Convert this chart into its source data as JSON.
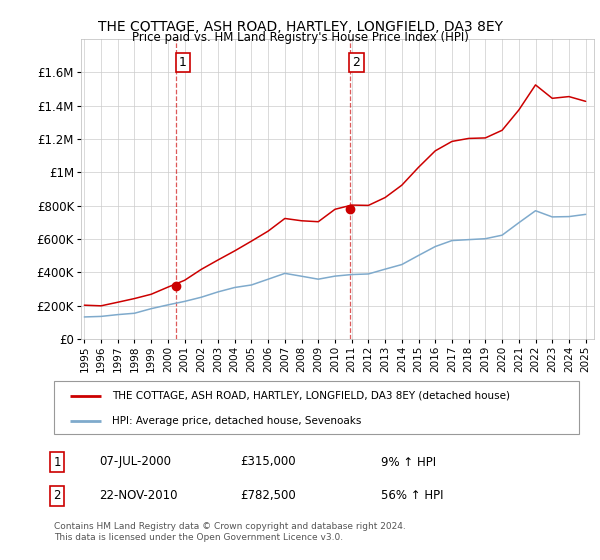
{
  "title": "THE COTTAGE, ASH ROAD, HARTLEY, LONGFIELD, DA3 8EY",
  "subtitle": "Price paid vs. HM Land Registry's House Price Index (HPI)",
  "legend_line1": "THE COTTAGE, ASH ROAD, HARTLEY, LONGFIELD, DA3 8EY (detached house)",
  "legend_line2": "HPI: Average price, detached house, Sevenoaks",
  "sale1_date": "07-JUL-2000",
  "sale1_price": "£315,000",
  "sale1_hpi": "9% ↑ HPI",
  "sale2_date": "22-NOV-2010",
  "sale2_price": "£782,500",
  "sale2_hpi": "56% ↑ HPI",
  "footnote1": "Contains HM Land Registry data © Crown copyright and database right 2024.",
  "footnote2": "This data is licensed under the Open Government Licence v3.0.",
  "red_color": "#cc0000",
  "blue_color": "#7faacc",
  "sale1_x": 2000.5,
  "sale1_y": 315000,
  "sale2_x": 2010.9,
  "sale2_y": 782500,
  "ylim": [
    0,
    1800000
  ],
  "xlim": [
    1994.8,
    2025.5
  ],
  "yticks": [
    0,
    200000,
    400000,
    600000,
    800000,
    1000000,
    1200000,
    1400000,
    1600000
  ],
  "ytick_labels": [
    "£0",
    "£200K",
    "£400K",
    "£600K",
    "£800K",
    "£1M",
    "£1.2M",
    "£1.4M",
    "£1.6M"
  ],
  "xticks": [
    1995,
    1996,
    1997,
    1998,
    1999,
    2000,
    2001,
    2002,
    2003,
    2004,
    2005,
    2006,
    2007,
    2008,
    2009,
    2010,
    2011,
    2012,
    2013,
    2014,
    2015,
    2016,
    2017,
    2018,
    2019,
    2020,
    2021,
    2022,
    2023,
    2024,
    2025
  ]
}
